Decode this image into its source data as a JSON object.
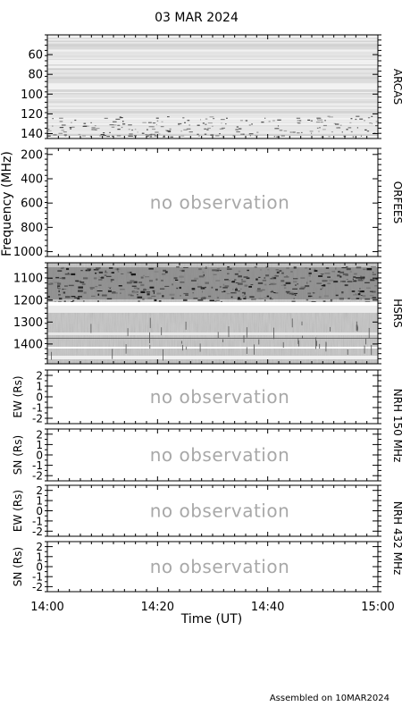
{
  "chart_data": {
    "type": "heatmap",
    "title": "03 MAR 2024",
    "xlabel": "Time (UT)",
    "x_ticks": [
      "14:00",
      "14:20",
      "14:40",
      "15:00"
    ],
    "xlim": [
      "14:00",
      "15:00"
    ],
    "footer": "Assembled on 10MAR2024",
    "no_observation_text": "no observation",
    "panels": [
      {
        "id": "arcas",
        "instrument": "ARCAS",
        "ylabel": "",
        "ylim": [
          40,
          145
        ],
        "y_ticks": [
          "60",
          "80",
          "100",
          "120",
          "140"
        ],
        "observed": true
      },
      {
        "id": "orfees",
        "instrument": "ORFEES",
        "ylabel": "Frequency (MHz)",
        "ylim": [
          150,
          1040
        ],
        "y_ticks": [
          "200",
          "400",
          "600",
          "800",
          "1000"
        ],
        "observed": false
      },
      {
        "id": "hsrs",
        "instrument": "HSRS",
        "ylabel": "",
        "ylim": [
          1030,
          1490
        ],
        "y_ticks": [
          "1100",
          "1200",
          "1300",
          "1400"
        ],
        "observed": true
      },
      {
        "id": "nrh150-ew",
        "instrument": "NRH 150 MHz",
        "ylabel": "EW (Rs)",
        "ylim": [
          -2.5,
          2.5
        ],
        "y_ticks": [
          "2",
          "1",
          "0",
          "-1",
          "-2"
        ],
        "observed": false
      },
      {
        "id": "nrh150-sn",
        "instrument": "",
        "ylabel": "SN (Rs)",
        "ylim": [
          -2.5,
          2.5
        ],
        "y_ticks": [
          "2",
          "1",
          "0",
          "-1",
          "-2"
        ],
        "observed": false
      },
      {
        "id": "nrh432-ew",
        "instrument": "NRH 432 MHz",
        "ylabel": "EW (Rs)",
        "ylim": [
          -2.5,
          2.5
        ],
        "y_ticks": [
          "2",
          "1",
          "0",
          "-1",
          "-2"
        ],
        "observed": false
      },
      {
        "id": "nrh432-sn",
        "instrument": "",
        "ylabel": "SN (Rs)",
        "ylim": [
          -2.5,
          2.5
        ],
        "y_ticks": [
          "2",
          "1",
          "0",
          "-1",
          "-2"
        ],
        "observed": false
      }
    ]
  }
}
